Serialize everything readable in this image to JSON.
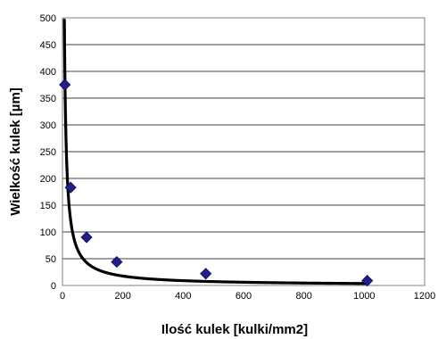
{
  "chart_data": {
    "type": "scatter",
    "xlabel": "Ilość kulek [kulki/mm2]",
    "ylabel": "Wielkość kulek [µm]",
    "xlim": [
      0,
      1200
    ],
    "ylim": [
      0,
      500
    ],
    "x_ticks": [
      0,
      200,
      400,
      600,
      800,
      1000,
      1200
    ],
    "y_ticks": [
      0,
      50,
      100,
      150,
      200,
      250,
      300,
      350,
      400,
      450,
      500
    ],
    "grid": "horizontal",
    "legend": "none",
    "marker_color": "#1f1f8f",
    "line_color": "#000000",
    "series": [
      {
        "points": [
          {
            "x": 8,
            "y": 375
          },
          {
            "x": 27,
            "y": 183
          },
          {
            "x": 80,
            "y": 90
          },
          {
            "x": 180,
            "y": 44
          },
          {
            "x": 475,
            "y": 22
          },
          {
            "x": 1010,
            "y": 9
          }
        ]
      }
    ],
    "trendline": {
      "type": "power",
      "coefficient": 3000,
      "exponent": -0.97,
      "x_range": [
        6,
        1010
      ]
    }
  }
}
